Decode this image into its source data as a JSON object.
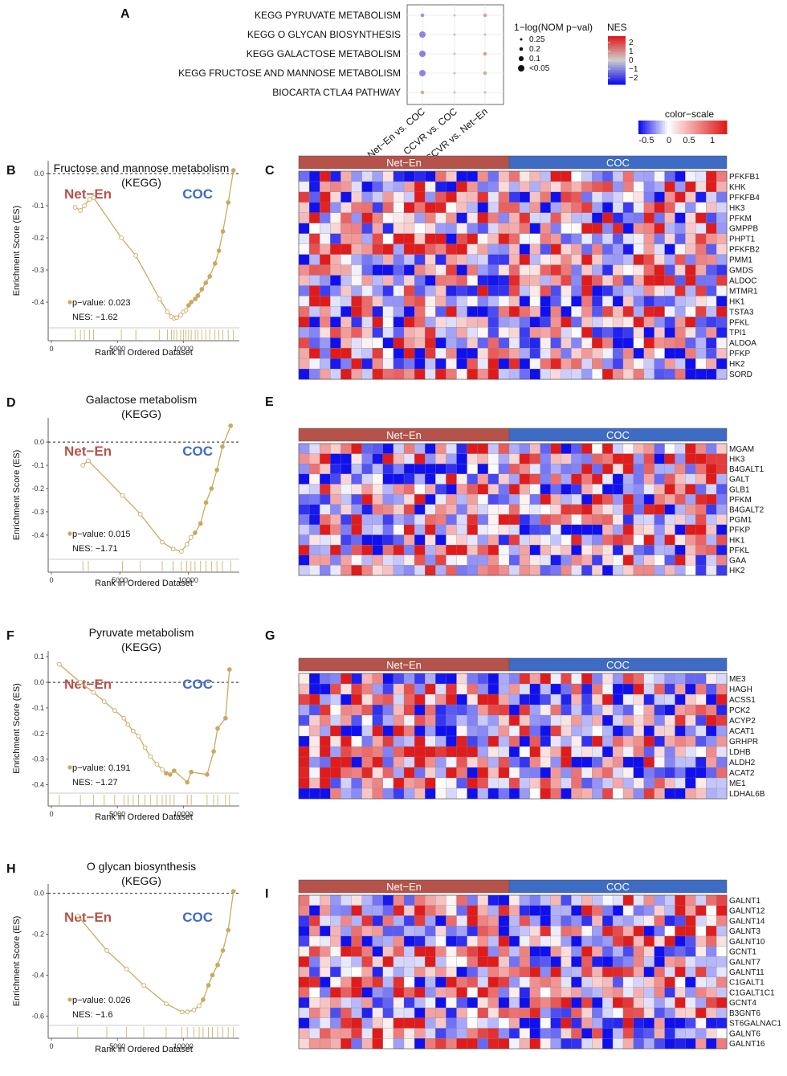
{
  "colors": {
    "gsea_line": "#c9aa5e",
    "net_en": "#b5534a",
    "coc": "#3e6bc4",
    "heat_low": "#1010ee",
    "heat_mid": "#ffffff",
    "heat_high": "#e01b1b"
  },
  "panel_a": {
    "label": "A",
    "pathways": [
      "KEGG PYRUVATE METABOLISM",
      "KEGG O GLYCAN BIOSYNTHESIS",
      "KEGG GALACTOSE METABOLISM",
      "KEGG FRUCTOSE AND MANNOSE METABOLISM",
      "BIOCARTA CTLA4 PATHWAY"
    ],
    "comparisons": [
      "Net−En vs. COC",
      "CCVR vs. COC",
      "CCVR vs. Net−En"
    ],
    "size_legend_title": "1−log(NOM p−val)",
    "size_legend_labels": [
      "0.25",
      "0.2",
      "0.1",
      "<0.05"
    ],
    "color_legend_title": "NES",
    "color_legend_labels": [
      "2",
      "1",
      "0",
      "−1",
      "−2"
    ],
    "dots": [
      {
        "pathway": 0,
        "comp": 0,
        "nes": -1.27,
        "size": 1
      },
      {
        "pathway": 0,
        "comp": 1,
        "nes": -0.2,
        "size": 0
      },
      {
        "pathway": 0,
        "comp": 2,
        "nes": 1.2,
        "size": 1
      },
      {
        "pathway": 1,
        "comp": 0,
        "nes": -1.6,
        "size": 3
      },
      {
        "pathway": 1,
        "comp": 1,
        "nes": -0.3,
        "size": 0
      },
      {
        "pathway": 1,
        "comp": 2,
        "nes": 0.5,
        "size": 0
      },
      {
        "pathway": 2,
        "comp": 0,
        "nes": -1.71,
        "size": 3
      },
      {
        "pathway": 2,
        "comp": 1,
        "nes": 0.3,
        "size": 0
      },
      {
        "pathway": 2,
        "comp": 2,
        "nes": 1.3,
        "size": 1
      },
      {
        "pathway": 3,
        "comp": 0,
        "nes": -1.62,
        "size": 3
      },
      {
        "pathway": 3,
        "comp": 1,
        "nes": -0.2,
        "size": 0
      },
      {
        "pathway": 3,
        "comp": 2,
        "nes": 1.1,
        "size": 1
      },
      {
        "pathway": 4,
        "comp": 0,
        "nes": 1.0,
        "size": 1
      },
      {
        "pathway": 4,
        "comp": 1,
        "nes": 0.2,
        "size": 0
      },
      {
        "pathway": 4,
        "comp": 2,
        "nes": -0.3,
        "size": 0
      }
    ]
  },
  "color_scale": {
    "title": "color−scale",
    "labels": [
      "-0.5",
      "0",
      "0.5",
      "1"
    ]
  },
  "chart_data": [
    {
      "type": "line",
      "label": "B",
      "title": "Fructose and mannose metabolism",
      "subtitle": "(KEGG)",
      "ylabel": "Enrichment Score (ES)",
      "xlabel": "Rank in Ordered Dataset",
      "xlim": [
        0,
        14000
      ],
      "ylim": [
        -0.47,
        0.03
      ],
      "yticks": [
        "0.0",
        "-0.1",
        "-0.2",
        "-0.3",
        "-0.4"
      ],
      "ytick_values": [
        0,
        -0.1,
        -0.2,
        -0.3,
        -0.4
      ],
      "xticks": [
        "0",
        "5000",
        "10000"
      ],
      "xtick_values": [
        0,
        5000,
        10000
      ],
      "left_group": "Net−En",
      "right_group": "COC",
      "pvalue_text": "p−value: 0.023",
      "nes_text": "NES: −1.62",
      "x": [
        1800,
        2200,
        2500,
        2900,
        3200,
        5300,
        6400,
        8200,
        8800,
        9100,
        9300,
        9500,
        9800,
        10000,
        10200,
        10400,
        10600,
        10900,
        11100,
        11400,
        11700,
        12000,
        12400,
        12700,
        13000,
        13400,
        13800
      ],
      "y": [
        -0.105,
        -0.115,
        -0.1,
        -0.08,
        -0.075,
        -0.2,
        -0.255,
        -0.39,
        -0.43,
        -0.445,
        -0.45,
        -0.448,
        -0.44,
        -0.43,
        -0.425,
        -0.41,
        -0.4,
        -0.39,
        -0.38,
        -0.36,
        -0.34,
        -0.32,
        -0.28,
        -0.24,
        -0.18,
        -0.09,
        0.01
      ]
    },
    {
      "type": "line",
      "label": "D",
      "title": "Galactose metabolism",
      "subtitle": "(KEGG)",
      "ylabel": "Enrichment Score (ES)",
      "xlabel": "Rank in Ordered Dataset",
      "xlim": [
        0,
        13500
      ],
      "ylim": [
        -0.49,
        0.09
      ],
      "yticks": [
        "0.0",
        "-0.1",
        "-0.2",
        "-0.3",
        "-0.4"
      ],
      "ytick_values": [
        0,
        -0.1,
        -0.2,
        -0.3,
        -0.4
      ],
      "xticks": [
        "0",
        "5000",
        "10000"
      ],
      "xtick_values": [
        0,
        5000,
        10000
      ],
      "left_group": "Net−En",
      "right_group": "COC",
      "pvalue_text": "p−value: 0.015",
      "nes_text": "NES: −1.71",
      "x": [
        2300,
        2700,
        5200,
        6500,
        8100,
        8900,
        9500,
        9900,
        10200,
        10500,
        10900,
        11300,
        11700,
        12100,
        12500,
        13100
      ],
      "y": [
        -0.1,
        -0.08,
        -0.23,
        -0.31,
        -0.43,
        -0.46,
        -0.47,
        -0.44,
        -0.41,
        -0.39,
        -0.35,
        -0.26,
        -0.2,
        -0.12,
        -0.02,
        0.07
      ]
    },
    {
      "type": "line",
      "label": "F",
      "title": "Pyruvate metabolism",
      "subtitle": "(KEGG)",
      "ylabel": "Enrichment Score (ES)",
      "xlabel": "Rank in Ordered Dataset",
      "xlim": [
        0,
        14000
      ],
      "ylim": [
        -0.42,
        0.11
      ],
      "yticks": [
        "0.1",
        "0.0",
        "-0.1",
        "-0.2",
        "-0.3",
        "-0.4"
      ],
      "ytick_values": [
        0.1,
        0,
        -0.1,
        -0.2,
        -0.3,
        -0.4
      ],
      "xticks": [
        "0",
        "5000",
        "10000"
      ],
      "xtick_values": [
        0,
        5000,
        10000
      ],
      "left_group": "Net−En",
      "right_group": "COC",
      "pvalue_text": "p−value: 0.191",
      "nes_text": "NES: −1.27",
      "x": [
        600,
        2200,
        3200,
        4000,
        4800,
        5500,
        5800,
        6200,
        6600,
        7100,
        7500,
        8000,
        8400,
        8700,
        9000,
        9300,
        10300,
        10600,
        11800,
        12300,
        12600,
        13200,
        13500
      ],
      "y": [
        0.07,
        0.0,
        -0.04,
        -0.075,
        -0.11,
        -0.14,
        -0.165,
        -0.19,
        -0.21,
        -0.255,
        -0.29,
        -0.32,
        -0.34,
        -0.355,
        -0.36,
        -0.345,
        -0.39,
        -0.35,
        -0.36,
        -0.27,
        -0.18,
        -0.14,
        0.05
      ]
    },
    {
      "type": "line",
      "label": "H",
      "title": "O glycan biosynthesis",
      "subtitle": "(KEGG)",
      "ylabel": "Enrichment Score (ES)",
      "xlabel": "Rank in Ordered Dataset",
      "xlim": [
        0,
        14000
      ],
      "ylim": [
        -0.63,
        0.03
      ],
      "yticks": [
        "0.0",
        "-0.2",
        "-0.4",
        "-0.6"
      ],
      "ytick_values": [
        0,
        -0.2,
        -0.4,
        -0.6
      ],
      "xticks": [
        "0",
        "5000",
        "10000"
      ],
      "xtick_values": [
        0,
        5000,
        10000
      ],
      "left_group": "Net−En",
      "right_group": "COC",
      "pvalue_text": "p−value: 0.026",
      "nes_text": "NES: −1.6",
      "x": [
        2000,
        4200,
        5700,
        7000,
        8700,
        9900,
        10300,
        10800,
        11200,
        11500,
        11900,
        12200,
        12600,
        13000,
        13400,
        13800
      ],
      "y": [
        -0.11,
        -0.28,
        -0.37,
        -0.45,
        -0.54,
        -0.58,
        -0.58,
        -0.57,
        -0.55,
        -0.52,
        -0.45,
        -0.4,
        -0.35,
        -0.28,
        -0.18,
        0.01
      ]
    }
  ],
  "heatmaps": [
    {
      "label": "C",
      "groups": [
        "Net−En",
        "COC"
      ],
      "n_left": 20,
      "n_right": 21,
      "seed": 11,
      "genes": [
        "PFKFB1",
        "KHK",
        "PFKFB4",
        "HK3",
        "PFKM",
        "GMPPB",
        "PHPT1",
        "PFKFB2",
        "PMM1",
        "GMDS",
        "ALDOC",
        "MTMR1",
        "HK1",
        "TSTA3",
        "PFKL",
        "TPI1",
        "ALDOA",
        "PFKP",
        "HK2",
        "SORD"
      ]
    },
    {
      "label": "E",
      "groups": [
        "Net−En",
        "COC"
      ],
      "n_left": 20,
      "n_right": 21,
      "seed": 23,
      "genes": [
        "MGAM",
        "HK3",
        "B4GALT1",
        "GALT",
        "GLB1",
        "PFKM",
        "B4GALT2",
        "PGM1",
        "PFKP",
        "HK1",
        "PFKL",
        "GAA",
        "HK2"
      ]
    },
    {
      "label": "G",
      "groups": [
        "Net−En",
        "COC"
      ],
      "n_left": 20,
      "n_right": 21,
      "seed": 37,
      "genes": [
        "ME3",
        "HAGH",
        "ACSS1",
        "PCK2",
        "ACYP2",
        "ACAT1",
        "GRHPR",
        "LDHB",
        "ALDH2",
        "ACAT2",
        "ME1",
        "LDHAL6B"
      ]
    },
    {
      "label": "I",
      "groups": [
        "Net−En",
        "COC"
      ],
      "n_left": 20,
      "n_right": 21,
      "seed": 51,
      "genes": [
        "GALNT1",
        "GALNT12",
        "GALNT14",
        "GALNT3",
        "GALNT10",
        "GCNT1",
        "GALNT7",
        "GALNT11",
        "C1GALT1",
        "C1GALT1C1",
        "GCNT4",
        "B3GNT6",
        "ST6GALNAC1",
        "GALNT6",
        "GALNT16"
      ]
    }
  ]
}
